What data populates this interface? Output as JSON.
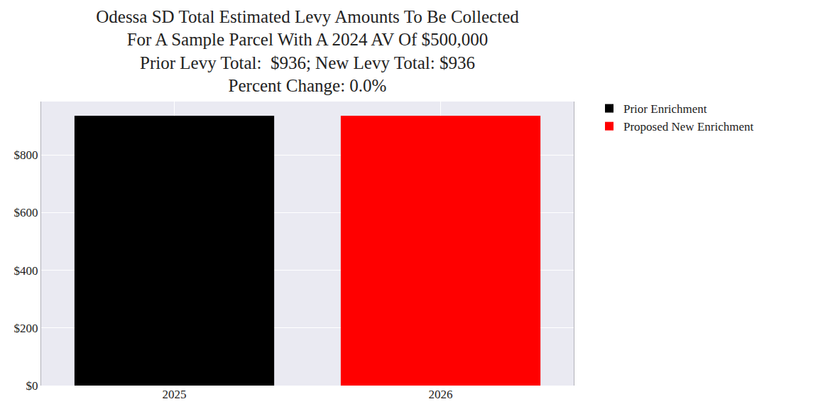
{
  "chart_data": {
    "type": "bar",
    "title": "Odessa SD Total Estimated Levy Amounts To Be Collected\nFor A Sample Parcel With A 2024 AV Of $500,000\nPrior Levy Total:  $936; New Levy Total: $936\nPercent Change: 0.0%",
    "categories": [
      "2025",
      "2026"
    ],
    "series": [
      {
        "name": "Prior Enrichment",
        "color": "#000000",
        "values": [
          936,
          null
        ]
      },
      {
        "name": "Proposed New Enrichment",
        "color": "#ff0000",
        "values": [
          null,
          936
        ]
      }
    ],
    "ylim": [
      0,
      985
    ],
    "yticks": [
      {
        "value": 0,
        "label": "$0"
      },
      {
        "value": 200,
        "label": "$200"
      },
      {
        "value": 400,
        "label": "$400"
      },
      {
        "value": 600,
        "label": "$600"
      },
      {
        "value": 800,
        "label": "$800"
      }
    ],
    "grid": true,
    "legend": "outside right"
  }
}
